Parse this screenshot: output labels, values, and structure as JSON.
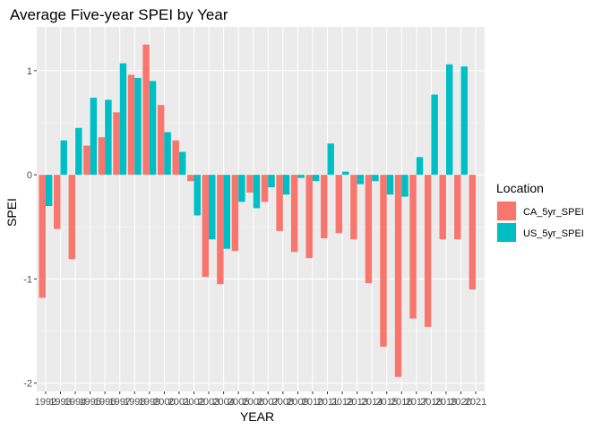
{
  "chart_data": {
    "type": "bar",
    "title": "Average Five-year SPEI by Year",
    "xlabel": "YEAR",
    "ylabel": "SPEI",
    "ylim": [
      -2.08,
      1.42
    ],
    "yticks": [
      -2,
      -1,
      0,
      1
    ],
    "ytick_labels": [
      "-2",
      "-1",
      "0",
      "1"
    ],
    "grid": true,
    "legend": {
      "title": "Location",
      "position": "right"
    },
    "categories": [
      "1992",
      "1993",
      "1994",
      "1995",
      "1996",
      "1997",
      "1998",
      "1999",
      "2000",
      "2001",
      "2002",
      "2003",
      "2004",
      "2005",
      "2006",
      "2007",
      "2008",
      "2009",
      "2010",
      "2011",
      "2012",
      "2013",
      "2014",
      "2015",
      "2016",
      "2017",
      "2018",
      "2019",
      "2020",
      "2021"
    ],
    "series": [
      {
        "name": "CA_5yr_SPEI",
        "color": "#f8766d",
        "values": [
          -1.18,
          -0.52,
          -0.81,
          0.28,
          0.36,
          0.6,
          0.96,
          1.25,
          0.67,
          0.33,
          -0.06,
          -0.98,
          -1.05,
          -0.73,
          -0.17,
          -0.26,
          -0.54,
          -0.74,
          -0.8,
          -0.61,
          -0.56,
          -0.62,
          -1.04,
          -1.65,
          -1.94,
          -1.38,
          -1.46,
          -0.62,
          -0.62,
          -1.1
        ]
      },
      {
        "name": "US_5yr_SPEI",
        "color": "#00bfc4",
        "values": [
          -0.3,
          0.33,
          0.45,
          0.74,
          0.72,
          1.07,
          0.93,
          0.9,
          0.41,
          0.22,
          -0.39,
          -0.62,
          -0.71,
          -0.26,
          -0.32,
          -0.12,
          -0.19,
          -0.03,
          -0.06,
          0.3,
          0.03,
          -0.09,
          -0.06,
          -0.19,
          -0.21,
          0.17,
          0.77,
          1.06,
          1.04,
          0.0
        ]
      }
    ]
  }
}
